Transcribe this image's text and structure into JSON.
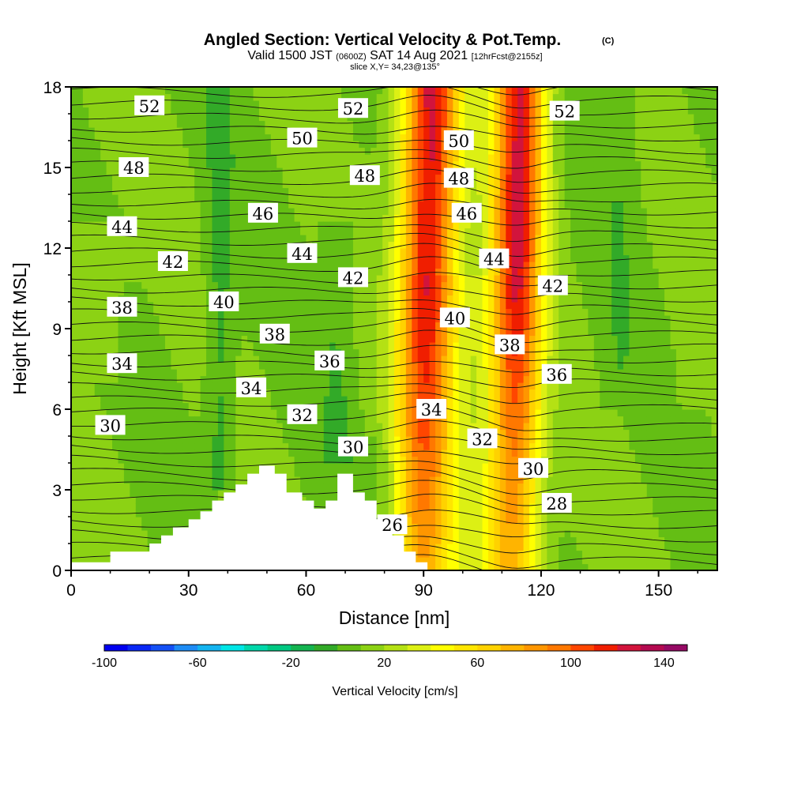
{
  "header": {
    "title": "Angled Section: Vertical Velocity & Pot.Temp.",
    "title_unit": "(C)",
    "valid_prefix": "Valid 1500 JST",
    "valid_utc": "(0600Z)",
    "valid_date": "SAT 14 Aug 2021",
    "forecast": "[12hrFcst@2155z]",
    "slice": "slice X,Y= 34,23@135°"
  },
  "chart_data": {
    "type": "heatmap",
    "xlabel": "Distance [nm]",
    "ylabel": "Height [Kft MSL]",
    "xlim": [
      0,
      165
    ],
    "ylim": [
      0,
      18
    ],
    "x_ticks": [
      0,
      30,
      60,
      90,
      120,
      150
    ],
    "y_ticks": [
      0,
      3,
      6,
      9,
      12,
      15,
      18
    ],
    "x_tick_labels": [
      "0",
      "30",
      "60",
      "90",
      "120",
      "150"
    ],
    "y_tick_labels": [
      "0",
      "3",
      "6",
      "9",
      "12",
      "15",
      "18"
    ],
    "colorbar": {
      "label": "Vertical Velocity [cm/s]",
      "min": -100,
      "max": 150,
      "step": 10,
      "tick_values": [
        -100,
        -60,
        -20,
        20,
        60,
        100,
        140
      ],
      "tick_labels": [
        "-100",
        "-60",
        "-20",
        "20",
        "60",
        "100",
        "140"
      ],
      "colors": [
        "#0000f0",
        "#0a28f5",
        "#1450f5",
        "#1e8cf5",
        "#14b4f0",
        "#00e6e6",
        "#00d7aa",
        "#00c882",
        "#14b450",
        "#32aa28",
        "#64be14",
        "#8cd214",
        "#b4e114",
        "#dcf014",
        "#ffff00",
        "#ffe600",
        "#ffd200",
        "#ffb400",
        "#ff9600",
        "#ff7800",
        "#ff4600",
        "#f01e00",
        "#d2143c",
        "#b40a50",
        "#960a64",
        "#780a78"
      ]
    },
    "updraft_cores": [
      {
        "x": 91,
        "peak_cm_s": 110
      },
      {
        "x": 114,
        "peak_cm_s": 110
      }
    ],
    "terrain": [
      [
        0,
        0.3
      ],
      [
        10,
        0.3
      ],
      [
        10,
        0.7
      ],
      [
        20,
        0.7
      ],
      [
        20,
        1.0
      ],
      [
        23,
        1.0
      ],
      [
        23,
        1.3
      ],
      [
        26,
        1.3
      ],
      [
        26,
        1.6
      ],
      [
        30,
        1.6
      ],
      [
        30,
        1.9
      ],
      [
        33,
        1.9
      ],
      [
        33,
        2.2
      ],
      [
        36,
        2.2
      ],
      [
        36,
        2.6
      ],
      [
        39,
        2.6
      ],
      [
        39,
        2.9
      ],
      [
        42,
        2.9
      ],
      [
        42,
        3.2
      ],
      [
        45,
        3.2
      ],
      [
        45,
        3.6
      ],
      [
        48,
        3.6
      ],
      [
        48,
        3.9
      ],
      [
        52,
        3.9
      ],
      [
        52,
        3.6
      ],
      [
        55,
        3.6
      ],
      [
        55,
        2.9
      ],
      [
        59,
        2.9
      ],
      [
        59,
        2.6
      ],
      [
        62,
        2.6
      ],
      [
        62,
        2.3
      ],
      [
        65,
        2.3
      ],
      [
        65,
        2.6
      ],
      [
        68,
        2.6
      ],
      [
        68,
        3.6
      ],
      [
        72,
        3.6
      ],
      [
        72,
        2.9
      ],
      [
        75,
        2.9
      ],
      [
        75,
        2.6
      ],
      [
        78,
        2.6
      ],
      [
        78,
        1.9
      ],
      [
        82,
        1.9
      ],
      [
        82,
        1.3
      ],
      [
        85,
        1.3
      ],
      [
        85,
        0.7
      ],
      [
        88,
        0.7
      ],
      [
        88,
        0.3
      ],
      [
        91,
        0.3
      ],
      [
        91,
        0
      ]
    ],
    "theta_labels": [
      {
        "text": "52",
        "x": 20,
        "y": 17.3
      },
      {
        "text": "52",
        "x": 72,
        "y": 17.2
      },
      {
        "text": "52",
        "x": 126,
        "y": 17.1
      },
      {
        "text": "50",
        "x": 59,
        "y": 16.1
      },
      {
        "text": "50",
        "x": 99,
        "y": 16.0
      },
      {
        "text": "48",
        "x": 16,
        "y": 15.0
      },
      {
        "text": "48",
        "x": 75,
        "y": 14.7
      },
      {
        "text": "48",
        "x": 99,
        "y": 14.6
      },
      {
        "text": "46",
        "x": 49,
        "y": 13.3
      },
      {
        "text": "46",
        "x": 101,
        "y": 13.3
      },
      {
        "text": "44",
        "x": 13,
        "y": 12.8
      },
      {
        "text": "44",
        "x": 59,
        "y": 11.8
      },
      {
        "text": "44",
        "x": 108,
        "y": 11.6
      },
      {
        "text": "42",
        "x": 26,
        "y": 11.5
      },
      {
        "text": "42",
        "x": 72,
        "y": 10.9
      },
      {
        "text": "42",
        "x": 123,
        "y": 10.6
      },
      {
        "text": "40",
        "x": 39,
        "y": 10.0
      },
      {
        "text": "40",
        "x": 98,
        "y": 9.4
      },
      {
        "text": "38",
        "x": 13,
        "y": 9.8
      },
      {
        "text": "38",
        "x": 52,
        "y": 8.8
      },
      {
        "text": "38",
        "x": 112,
        "y": 8.4
      },
      {
        "text": "36",
        "x": 66,
        "y": 7.8
      },
      {
        "text": "36",
        "x": 124,
        "y": 7.3
      },
      {
        "text": "34",
        "x": 13,
        "y": 7.7
      },
      {
        "text": "34",
        "x": 46,
        "y": 6.8
      },
      {
        "text": "34",
        "x": 92,
        "y": 6.0
      },
      {
        "text": "32",
        "x": 59,
        "y": 5.8
      },
      {
        "text": "32",
        "x": 105,
        "y": 4.9
      },
      {
        "text": "30",
        "x": 10,
        "y": 5.4
      },
      {
        "text": "30",
        "x": 72,
        "y": 4.6
      },
      {
        "text": "30",
        "x": 118,
        "y": 3.8
      },
      {
        "text": "28",
        "x": 124,
        "y": 2.5
      },
      {
        "text": "26",
        "x": 82,
        "y": 1.7
      }
    ]
  }
}
